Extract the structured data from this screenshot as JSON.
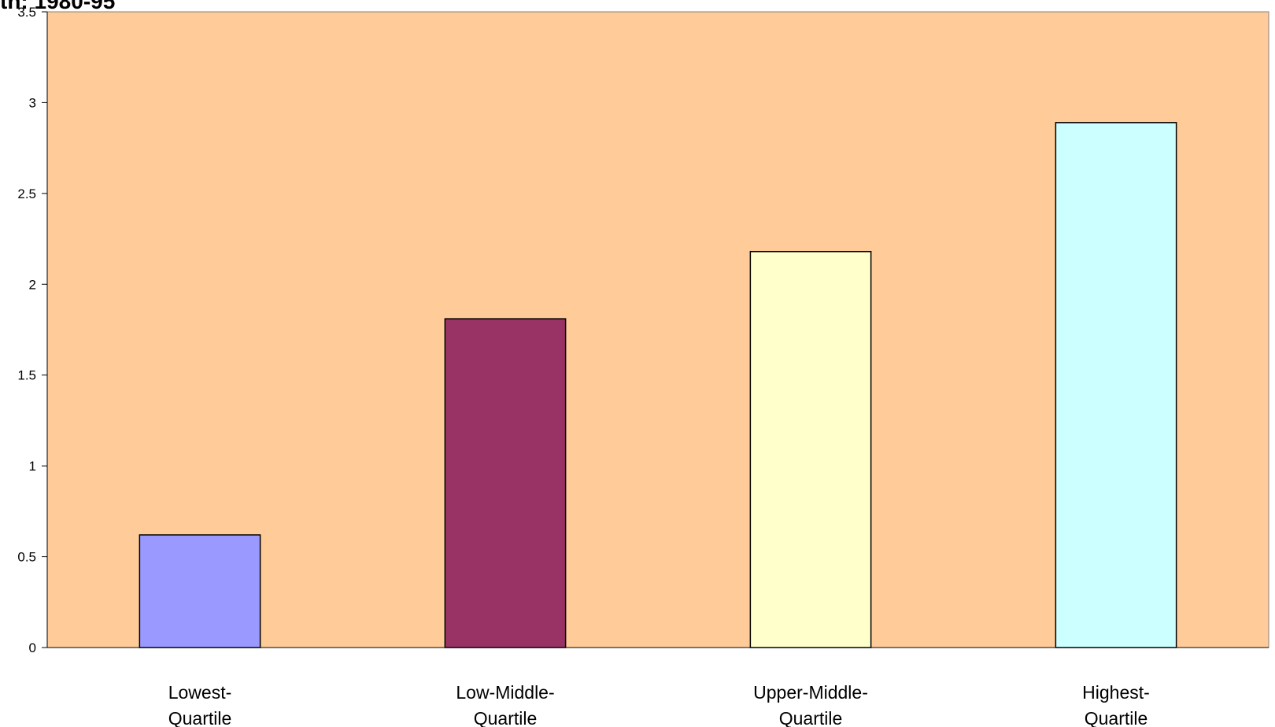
{
  "chart_data": {
    "type": "bar",
    "title": "th: 1980-95",
    "xlabel": "",
    "ylabel": "",
    "categories": [
      [
        "Lowest-",
        "Quartile"
      ],
      [
        "Low-Middle-",
        "Quartile"
      ],
      [
        "Upper-Middle-",
        "Quartile"
      ],
      [
        "Highest-",
        "Quartile"
      ]
    ],
    "values": [
      0.62,
      1.81,
      2.18,
      2.89
    ],
    "bar_colors": [
      "#9999ff",
      "#993366",
      "#ffffcc",
      "#ccffff"
    ],
    "plot_background": "#ffcc99",
    "ylim": [
      0,
      3.5
    ],
    "yticks": [
      0,
      0.5,
      1,
      1.5,
      2,
      2.5,
      3,
      3.5
    ],
    "ytick_labels": [
      "0",
      "0.5",
      "1",
      "1.5",
      "2",
      "2.5",
      "3",
      "3.5"
    ],
    "grid": false,
    "legend": "none"
  }
}
